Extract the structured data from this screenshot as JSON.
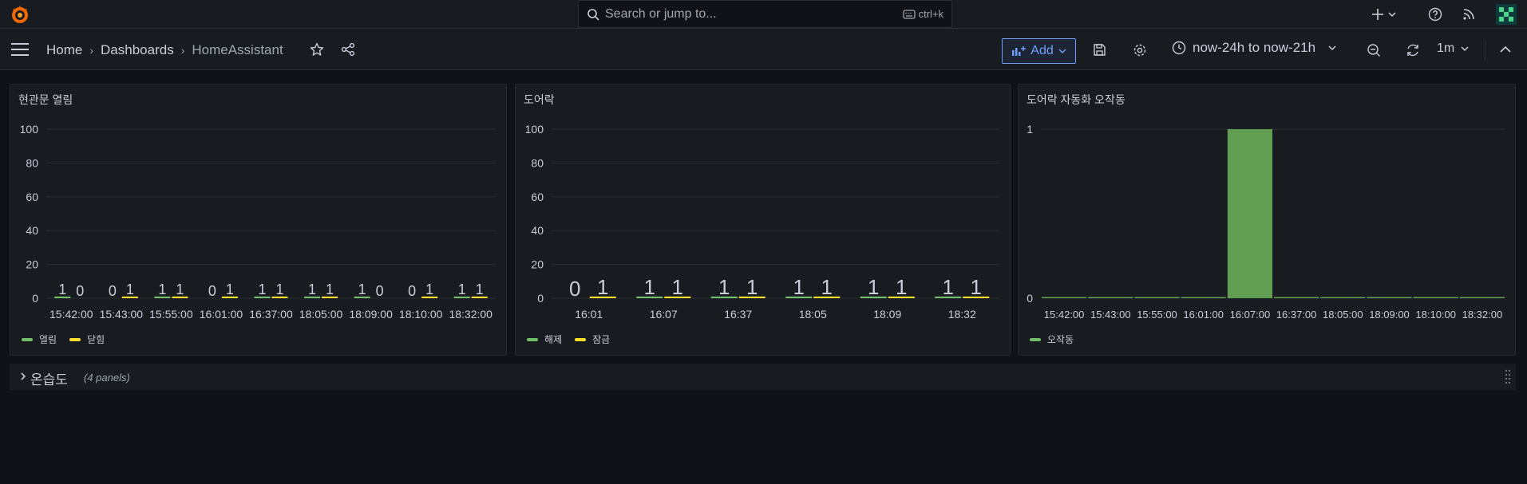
{
  "topbar": {
    "search_placeholder": "Search or jump to...",
    "search_shortcut": "ctrl+k"
  },
  "nav": {
    "breadcrumbs": [
      "Home",
      "Dashboards",
      "HomeAssistant"
    ],
    "add_label": "Add",
    "time_range": "now-24h to now-21h",
    "refresh_interval": "1m"
  },
  "colors": {
    "green": "#73bf69",
    "yellow": "#fade2a",
    "bar_green": "#629e51"
  },
  "panels": [
    {
      "title": "현관문 열림",
      "legend": [
        {
          "label": "열림",
          "color": "#73bf69"
        },
        {
          "label": "닫힘",
          "color": "#fade2a"
        }
      ]
    },
    {
      "title": "도어락",
      "legend": [
        {
          "label": "해제",
          "color": "#73bf69"
        },
        {
          "label": "잠금",
          "color": "#fade2a"
        }
      ]
    },
    {
      "title": "도어락 자동화 오작동",
      "legend": [
        {
          "label": "오작동",
          "color": "#73bf69"
        }
      ]
    }
  ],
  "chart_data": [
    {
      "type": "bar",
      "title": "현관문 열림",
      "categories": [
        "15:42:00",
        "15:43:00",
        "15:55:00",
        "16:01:00",
        "16:37:00",
        "18:05:00",
        "18:09:00",
        "18:10:00",
        "18:32:00"
      ],
      "series": [
        {
          "name": "열림",
          "values": [
            1,
            0,
            1,
            0,
            1,
            1,
            1,
            0,
            1
          ]
        },
        {
          "name": "닫힘",
          "values": [
            0,
            1,
            1,
            1,
            1,
            1,
            0,
            1,
            1
          ]
        }
      ],
      "yticks": [
        "0",
        "20",
        "40",
        "60",
        "80",
        "100"
      ],
      "ylim": [
        0,
        100
      ]
    },
    {
      "type": "bar",
      "title": "도어락",
      "categories": [
        "16:01",
        "16:07",
        "16:37",
        "18:05",
        "18:09",
        "18:32"
      ],
      "series": [
        {
          "name": "해제",
          "values": [
            0,
            1,
            1,
            1,
            1,
            1
          ]
        },
        {
          "name": "잠금",
          "values": [
            1,
            1,
            1,
            1,
            1,
            1
          ]
        }
      ],
      "yticks": [
        "0",
        "20",
        "40",
        "60",
        "80",
        "100"
      ],
      "ylim": [
        0,
        100
      ]
    },
    {
      "type": "bar",
      "title": "도어락 자동화 오작동",
      "categories": [
        "15:42:00",
        "15:43:00",
        "15:55:00",
        "16:01:00",
        "16:07:00",
        "16:37:00",
        "18:05:00",
        "18:09:00",
        "18:10:00",
        "18:32:00"
      ],
      "series": [
        {
          "name": "오작동",
          "values": [
            0,
            0,
            0,
            0,
            1,
            0,
            0,
            0,
            0,
            0
          ]
        }
      ],
      "yticks": [
        "0",
        "1"
      ],
      "ylim": [
        0,
        1
      ]
    }
  ],
  "row": {
    "title": "온습도",
    "count": "(4 panels)"
  }
}
